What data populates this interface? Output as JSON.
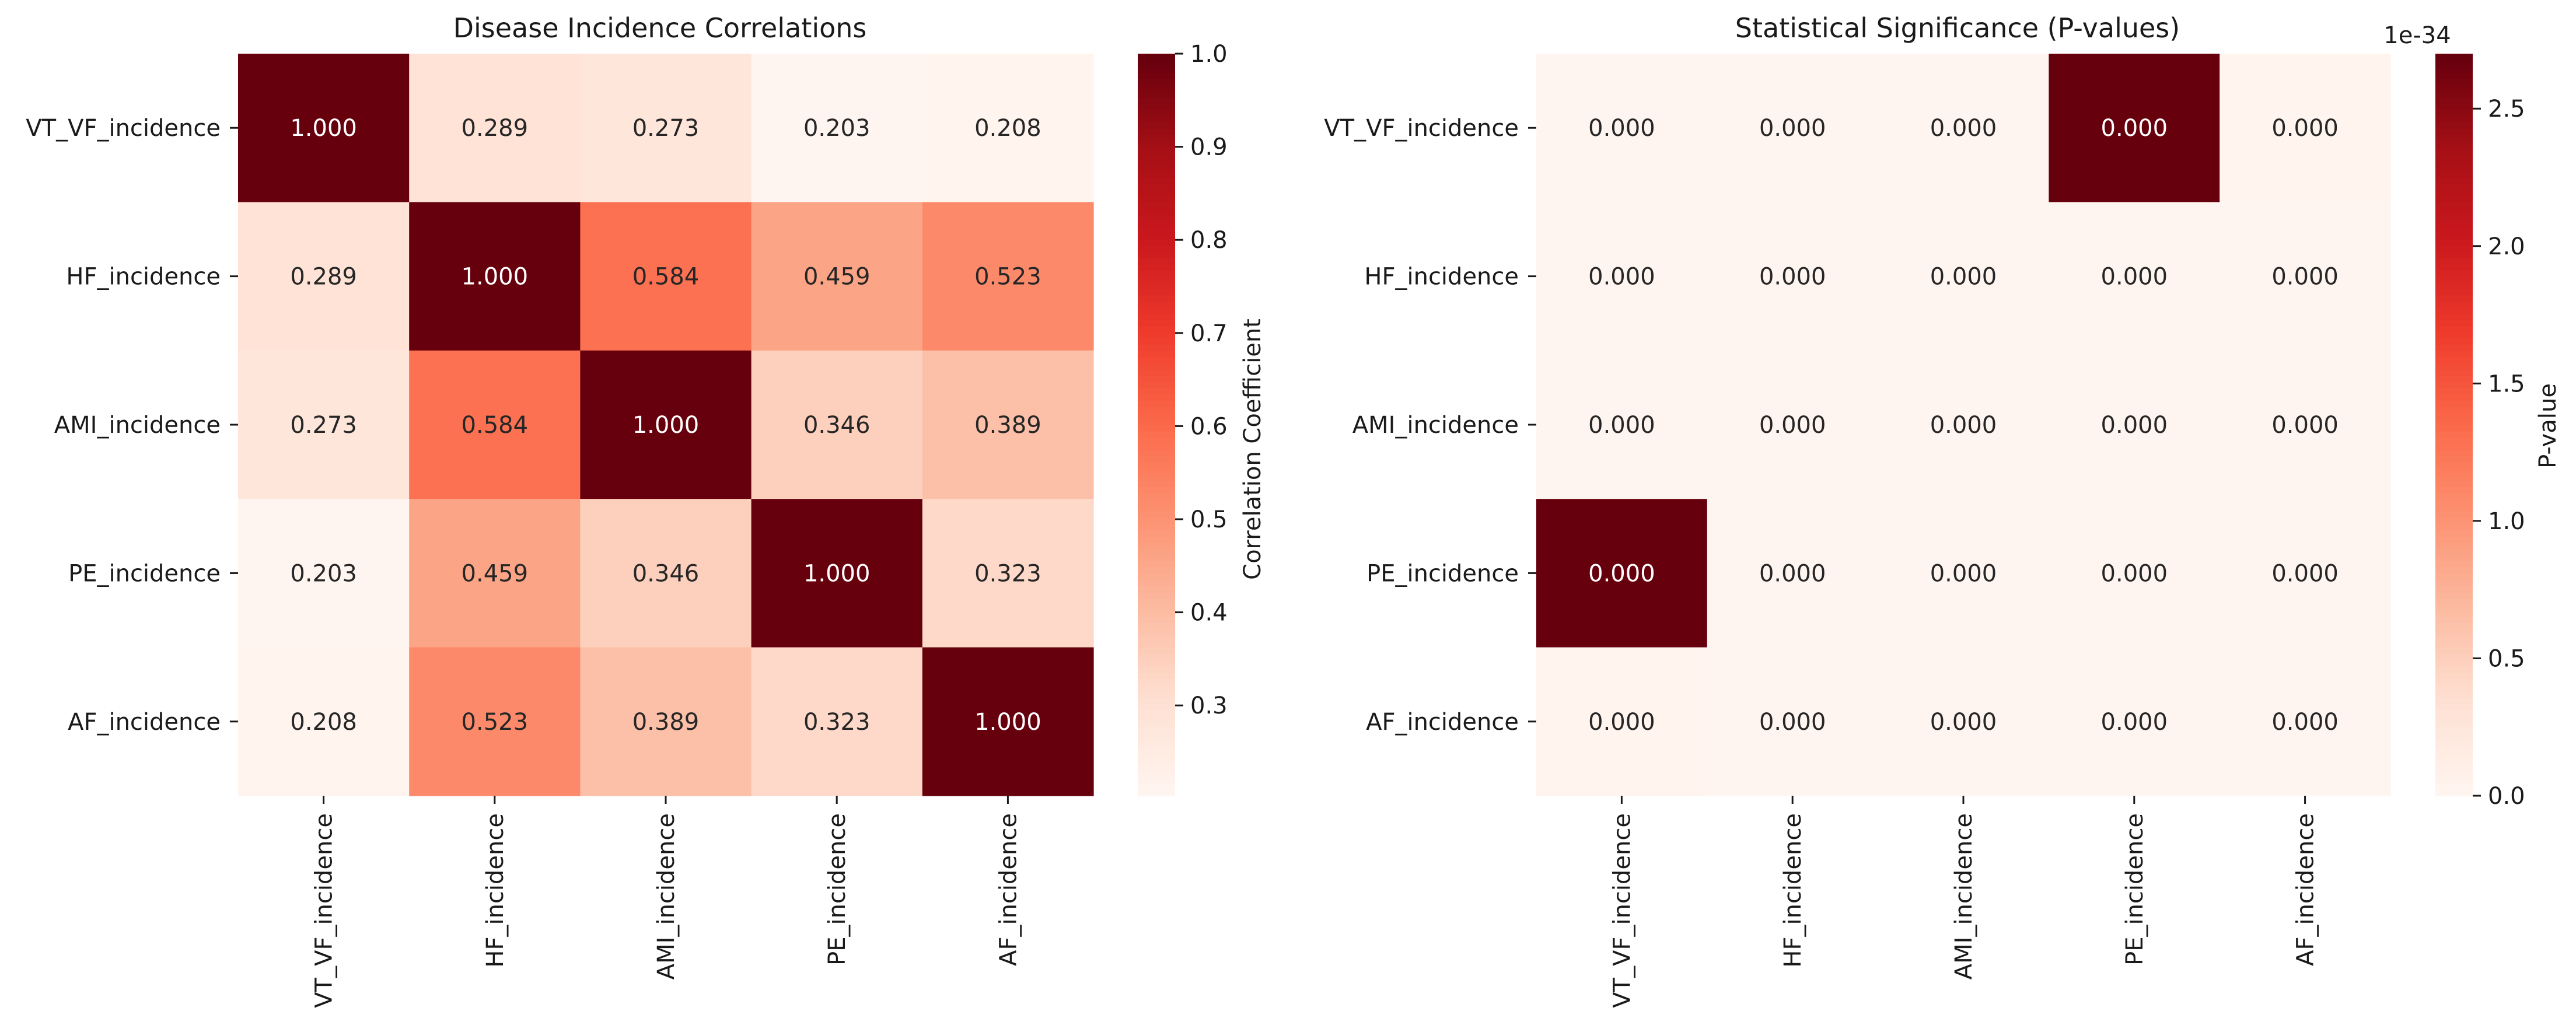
{
  "chart_data": [
    {
      "type": "heatmap",
      "title": "Disease Incidence Correlations",
      "rows": [
        "VT_VF_incidence",
        "HF_incidence",
        "AMI_incidence",
        "PE_incidence",
        "AF_incidence"
      ],
      "columns": [
        "VT_VF_incidence",
        "HF_incidence",
        "AMI_incidence",
        "PE_incidence",
        "AF_incidence"
      ],
      "values": [
        [
          1.0,
          0.289,
          0.273,
          0.203,
          0.208
        ],
        [
          0.289,
          1.0,
          0.584,
          0.459,
          0.523
        ],
        [
          0.273,
          0.584,
          1.0,
          0.346,
          0.389
        ],
        [
          0.203,
          0.459,
          0.346,
          1.0,
          0.323
        ],
        [
          0.208,
          0.523,
          0.389,
          0.323,
          1.0
        ]
      ],
      "annotations": [
        [
          "1.000",
          "0.289",
          "0.273",
          "0.203",
          "0.208"
        ],
        [
          "0.289",
          "1.000",
          "0.584",
          "0.459",
          "0.523"
        ],
        [
          "0.273",
          "0.584",
          "1.000",
          "0.346",
          "0.389"
        ],
        [
          "0.203",
          "0.459",
          "0.346",
          "1.000",
          "0.323"
        ],
        [
          "0.208",
          "0.523",
          "0.389",
          "0.323",
          "1.000"
        ]
      ],
      "colormap": "Reds",
      "colorbar": {
        "label": "Correlation Coefficient",
        "range": [
          0.203,
          1.0
        ],
        "ticks": [
          0.3,
          0.4,
          0.5,
          0.6,
          0.7,
          0.8,
          0.9,
          1.0
        ],
        "tick_labels": [
          "0.3",
          "0.4",
          "0.5",
          "0.6",
          "0.7",
          "0.8",
          "0.9",
          "1.0"
        ],
        "offset_text": ""
      }
    },
    {
      "type": "heatmap",
      "title": "Statistical Significance (P-values)",
      "rows": [
        "VT_VF_incidence",
        "HF_incidence",
        "AMI_incidence",
        "PE_incidence",
        "AF_incidence"
      ],
      "columns": [
        "VT_VF_incidence",
        "HF_incidence",
        "AMI_incidence",
        "PE_incidence",
        "AF_incidence"
      ],
      "values": [
        [
          0.0,
          0.0,
          0.0,
          2.7,
          0.02
        ],
        [
          0.0,
          0.0,
          0.0,
          0.0,
          0.0
        ],
        [
          0.0,
          0.0,
          0.0,
          0.0,
          0.0
        ],
        [
          2.7,
          0.0,
          0.0,
          0.0,
          0.0
        ],
        [
          0.02,
          0.0,
          0.0,
          0.0,
          0.0
        ]
      ],
      "value_scale": "1e-34",
      "annotations": [
        [
          "0.000",
          "0.000",
          "0.000",
          "0.000",
          "0.000"
        ],
        [
          "0.000",
          "0.000",
          "0.000",
          "0.000",
          "0.000"
        ],
        [
          "0.000",
          "0.000",
          "0.000",
          "0.000",
          "0.000"
        ],
        [
          "0.000",
          "0.000",
          "0.000",
          "0.000",
          "0.000"
        ],
        [
          "0.000",
          "0.000",
          "0.000",
          "0.000",
          "0.000"
        ]
      ],
      "colormap": "Reds",
      "colorbar": {
        "label": "P-value",
        "range": [
          0.0,
          2.7
        ],
        "ticks": [
          0.0,
          0.5,
          1.0,
          1.5,
          2.0,
          2.5
        ],
        "tick_labels": [
          "0.0",
          "0.5",
          "1.0",
          "1.5",
          "2.0",
          "2.5"
        ],
        "offset_text": "1e-34"
      }
    }
  ]
}
